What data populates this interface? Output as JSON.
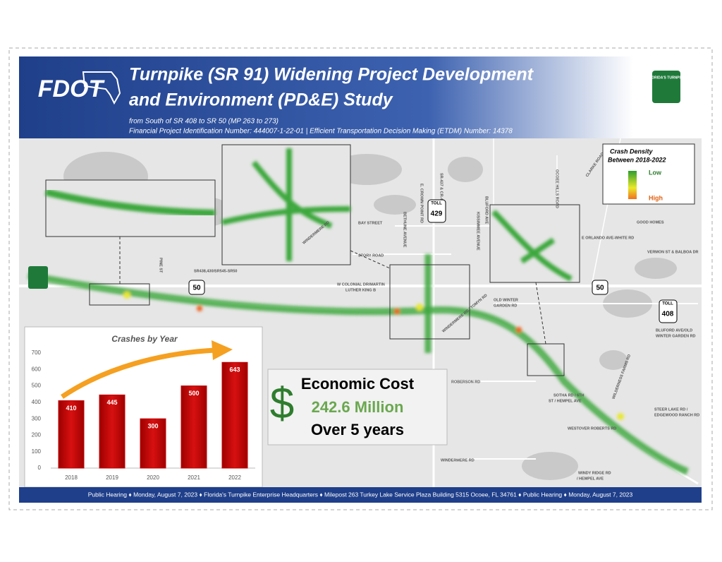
{
  "header": {
    "title_line1": "Turnpike (SR 91) Widening Project Development",
    "title_line2": "and Environment (PD&E) Study",
    "subtitle_line1": "from South of SR 408 to SR 50 (MP 263 to 273)",
    "subtitle_line2": "Financial Project Identification Number: 444007-1-22-01 |  Efficient Transportation Decision Making (ETDM) Number: 14378",
    "logo": "FDOT",
    "turnpike_logo": "FLORIDA'S TURNPIKE"
  },
  "legend": {
    "title_line1": "Crash Density",
    "title_line2": "Between 2018-2022",
    "low": "Low",
    "high": "High"
  },
  "map": {
    "labels": [
      "E. CROWN POINT RD",
      "SR-437 & CR-437",
      "BLUFORD AVE",
      "OCOEE HILLS ROAD",
      "CLARKE ROAD",
      "BAY STREET",
      "STORY ROAD",
      "BETHUNE AVENUE",
      "KISSIMMEE AVENUE",
      "E ORLANDO AVE-WHITE RD",
      "GOOD HOMES",
      "VERMON ST & BALBOA DR",
      "SR438,430/SR545-SR50",
      "W COLONIAL DR/MARTIN",
      "LUTHER KING B",
      "OLD WINTER",
      "GARDEN RD",
      "WINDERMERE RD / TOMYN RD",
      "WINDERMERE RD",
      "BLUFORD AVE/OLD",
      "WINTER GARDEN RD",
      "ROBERSON RD",
      "SOTHA RD / 6TH",
      "ST / HEMPEL AVE",
      "WILDERNESS FARMS RD",
      "STEER LAKE RD /",
      "EDGEWOOD RANCH RD",
      "WESTOVER ROBERTS RD",
      "WINDERMERE RD",
      "WINDY RIDGE RD",
      "/ HEMPEL AVE",
      "PINE ST"
    ],
    "shields": {
      "toll": "TOLL",
      "sr429": "429",
      "sr50": "50",
      "sr408": "408"
    }
  },
  "chart_data": {
    "type": "bar",
    "title": "Crashes by Year",
    "categories": [
      "2018",
      "2019",
      "2020",
      "2021",
      "2022"
    ],
    "values": [
      410,
      445,
      300,
      500,
      643
    ],
    "color": "#c00000",
    "ylim": [
      0,
      700
    ],
    "yticks": [
      0,
      100,
      200,
      300,
      400,
      500,
      600,
      700
    ],
    "grid": false
  },
  "callout": {
    "title": "Economic Cost",
    "symbol": "$",
    "amount": "242.6 Million",
    "period": "Over 5 years"
  },
  "footer": {
    "text": "Public Hearing ♦ Monday, August 7, 2023 ♦ Florida's Turnpike Enterprise Headquarters ♦ Milepost 263 Turkey Lake Service Plaza Building 5315 Ocoee, FL 34761 ♦ Public Hearing ♦ Monday, August 7, 2023"
  }
}
